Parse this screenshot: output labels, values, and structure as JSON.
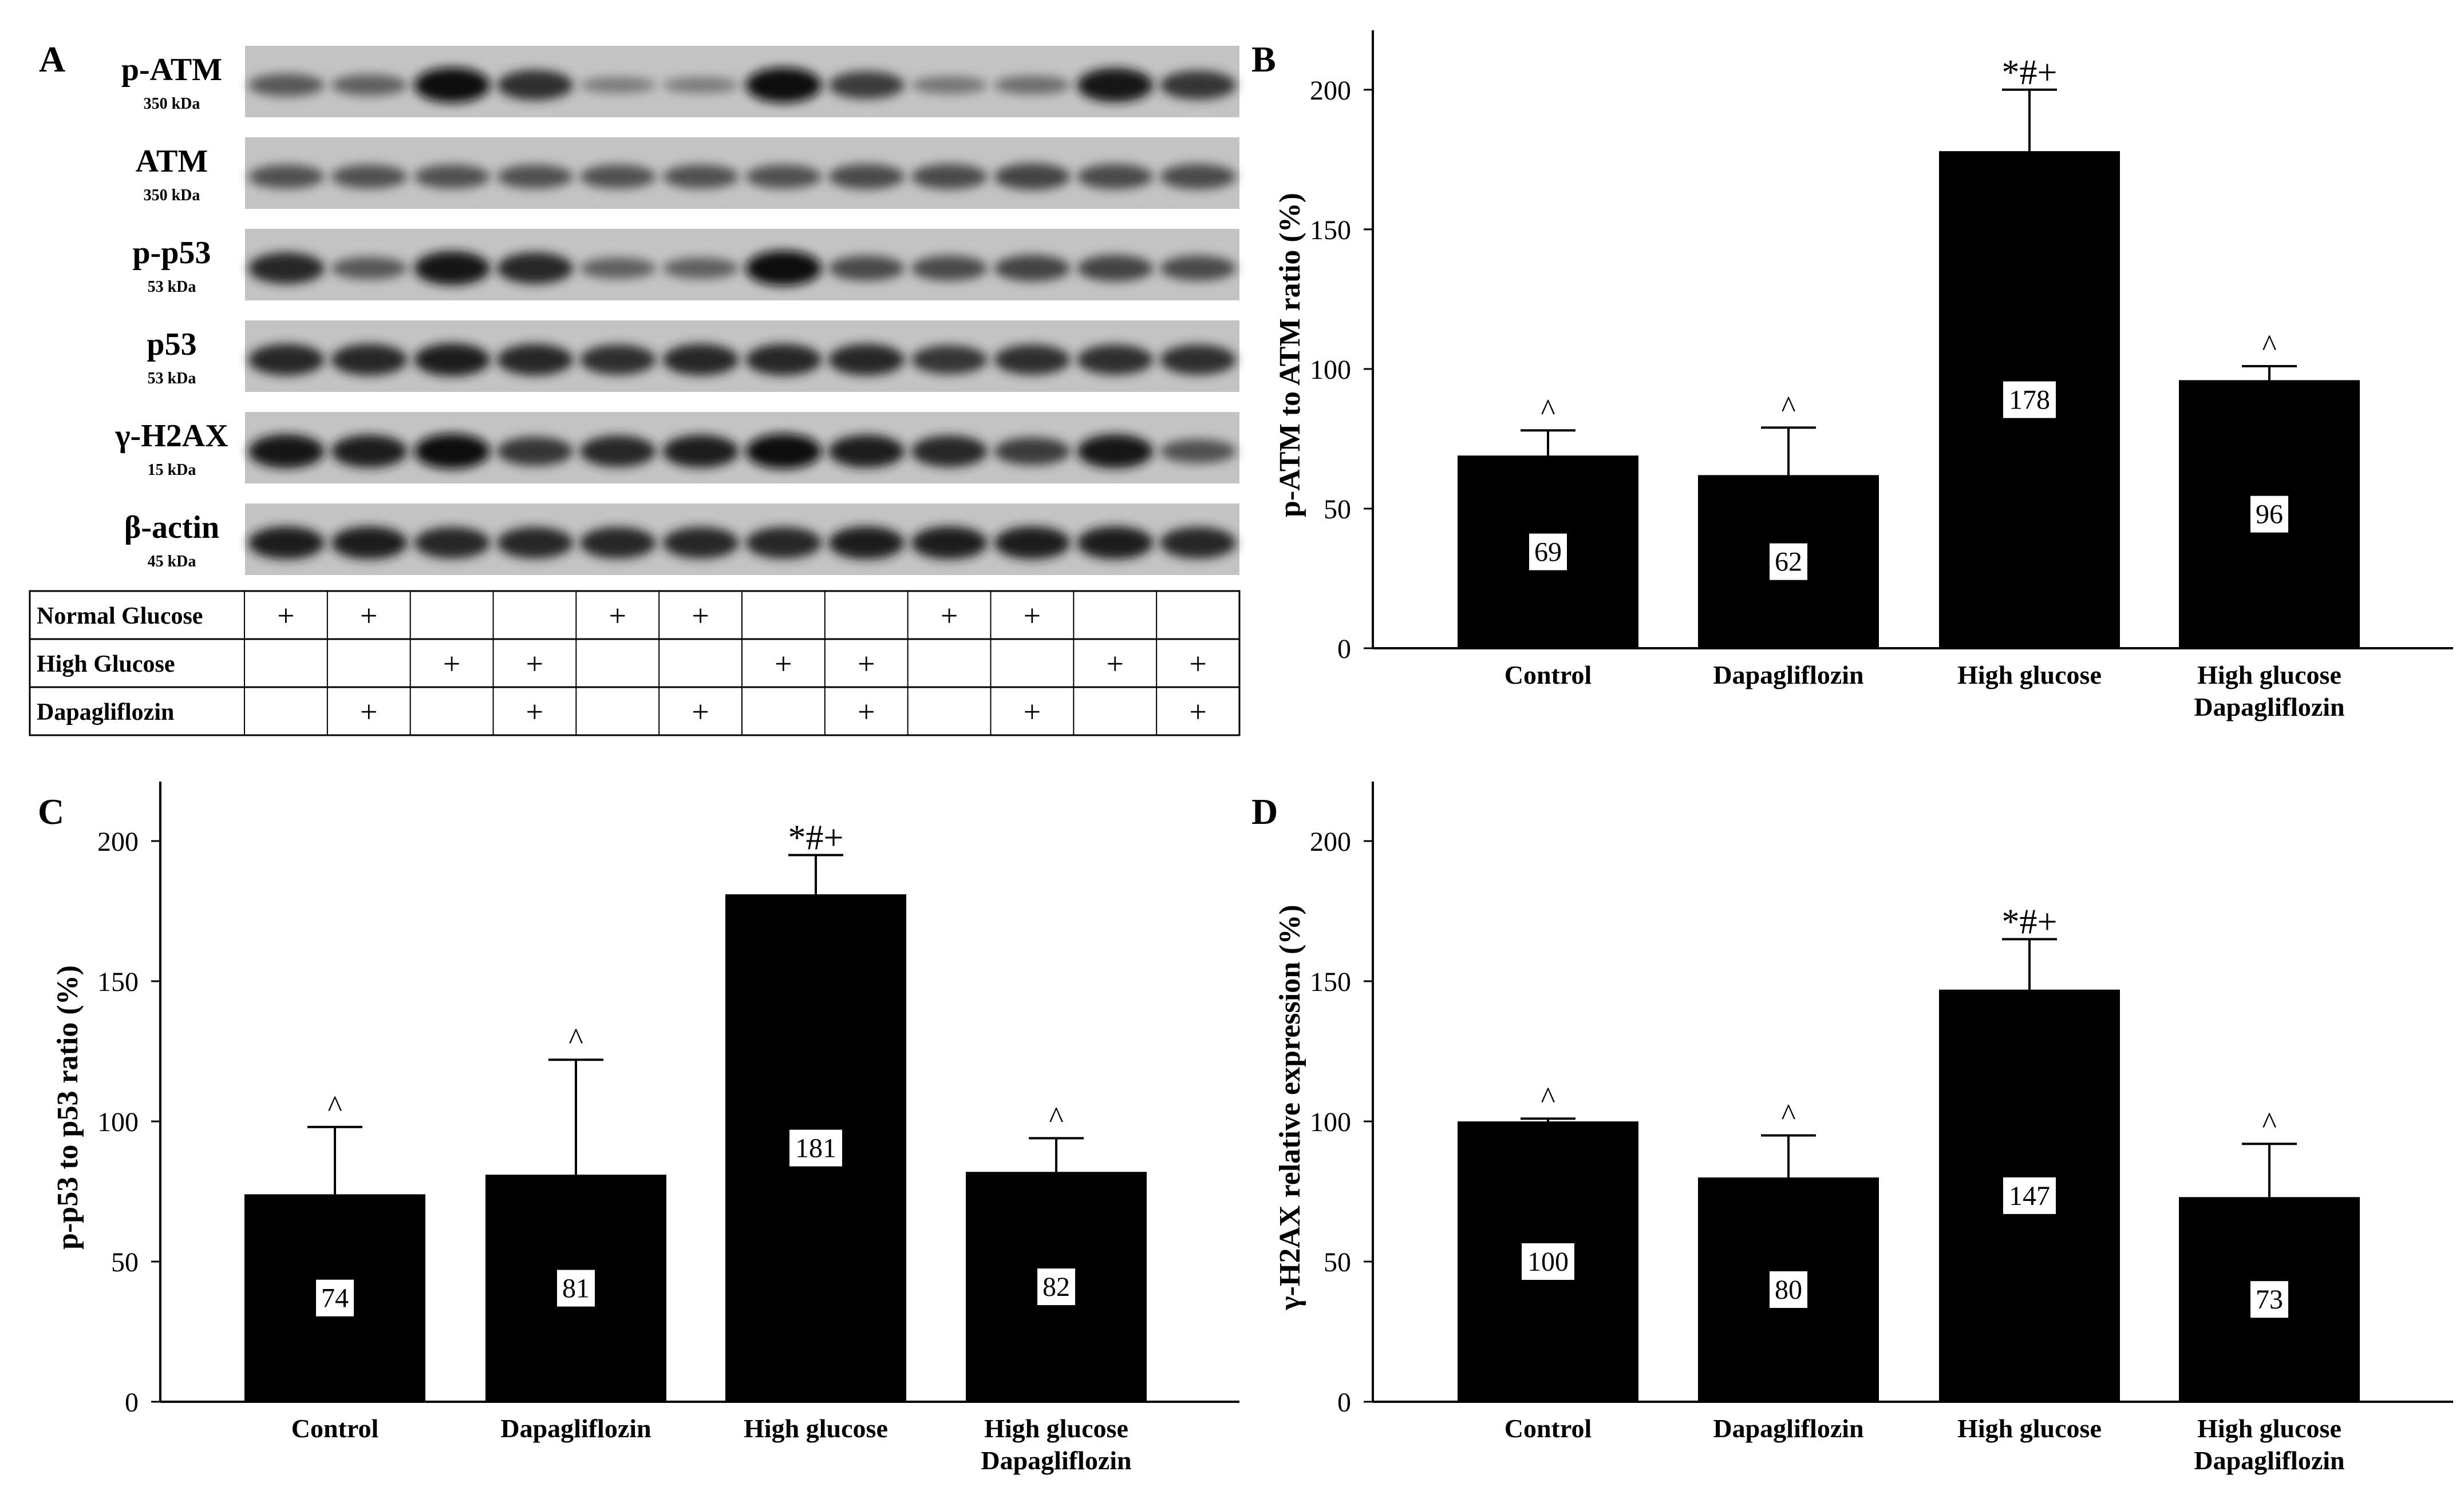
{
  "panel_a": {
    "letter": "A",
    "blots": [
      {
        "label": "p-ATM",
        "kda": "350 kDa",
        "intensities": [
          0.45,
          0.4,
          0.95,
          0.75,
          0.2,
          0.2,
          0.95,
          0.65,
          0.25,
          0.3,
          0.9,
          0.7
        ]
      },
      {
        "label": "ATM",
        "kda": "350 kDa",
        "intensities": [
          0.5,
          0.5,
          0.5,
          0.5,
          0.5,
          0.5,
          0.5,
          0.55,
          0.55,
          0.6,
          0.55,
          0.55
        ]
      },
      {
        "label": "p-p53",
        "kda": "53 kDa",
        "intensities": [
          0.8,
          0.45,
          0.9,
          0.8,
          0.4,
          0.4,
          0.95,
          0.55,
          0.55,
          0.6,
          0.6,
          0.55
        ]
      },
      {
        "label": "p53",
        "kda": "53 kDa",
        "intensities": [
          0.8,
          0.8,
          0.85,
          0.8,
          0.75,
          0.8,
          0.8,
          0.8,
          0.7,
          0.75,
          0.75,
          0.75
        ]
      },
      {
        "label": "γ-H2AX",
        "kda": "15 kDa",
        "intensities": [
          0.9,
          0.85,
          0.95,
          0.7,
          0.8,
          0.85,
          0.95,
          0.85,
          0.8,
          0.65,
          0.9,
          0.5
        ]
      },
      {
        "label": "β-actin",
        "kda": "45 kDa",
        "intensities": [
          0.85,
          0.85,
          0.8,
          0.8,
          0.8,
          0.8,
          0.8,
          0.85,
          0.85,
          0.85,
          0.85,
          0.8
        ]
      }
    ],
    "conditions": [
      {
        "label": "Normal Glucose",
        "marks": [
          "+",
          "+",
          "",
          "",
          "+",
          "+",
          "",
          "",
          "+",
          "+",
          "",
          ""
        ]
      },
      {
        "label": "High Glucose",
        "marks": [
          "",
          "",
          "+",
          "+",
          "",
          "",
          "+",
          "+",
          "",
          "",
          "+",
          "+"
        ]
      },
      {
        "label": "Dapagliflozin",
        "marks": [
          "",
          "+",
          "",
          "+",
          "",
          "+",
          "",
          "+",
          "",
          "+",
          "",
          "+"
        ]
      }
    ]
  },
  "chart_data": [
    {
      "panel": "B",
      "type": "bar",
      "categories": [
        "Control",
        "Dapagliflozin",
        "High glucose",
        "High glucose\nDapagliflozin"
      ],
      "values": [
        69,
        62,
        178,
        96
      ],
      "errors": [
        9,
        17,
        22,
        5
      ],
      "annotations": [
        "^",
        "^",
        "*#+",
        "^"
      ],
      "data_labels": [
        "69",
        "62",
        "178",
        "96"
      ],
      "ylabel": "p-ATM to ATM ratio (%)",
      "xlabel": "",
      "yticks": [
        0,
        50,
        100,
        150,
        200
      ],
      "ylim": [
        0,
        210
      ]
    },
    {
      "panel": "C",
      "type": "bar",
      "categories": [
        "Control",
        "Dapagliflozin",
        "High glucose",
        "High glucose\nDapagliflozin"
      ],
      "values": [
        74,
        81,
        181,
        82
      ],
      "errors": [
        24,
        41,
        14,
        12
      ],
      "annotations": [
        "^",
        "^",
        "*#+",
        "^"
      ],
      "data_labels": [
        "74",
        "81",
        "181",
        "82"
      ],
      "ylabel": "p-p53 to p53 ratio (%)",
      "xlabel": "",
      "yticks": [
        0,
        50,
        100,
        150,
        200
      ],
      "ylim": [
        0,
        210
      ]
    },
    {
      "panel": "D",
      "type": "bar",
      "categories": [
        "Control",
        "Dapagliflozin",
        "High glucose",
        "High glucose\nDapagliflozin"
      ],
      "values": [
        100,
        80,
        147,
        73
      ],
      "errors": [
        1,
        15,
        18,
        19
      ],
      "annotations": [
        "^",
        "^",
        "*#+",
        "^"
      ],
      "data_labels": [
        "100",
        "80",
        "147",
        "73"
      ],
      "ylabel": "γ-H2AX relative expression (%)",
      "xlabel": "",
      "yticks": [
        0,
        50,
        100,
        150,
        200
      ],
      "ylim": [
        0,
        210
      ]
    }
  ]
}
